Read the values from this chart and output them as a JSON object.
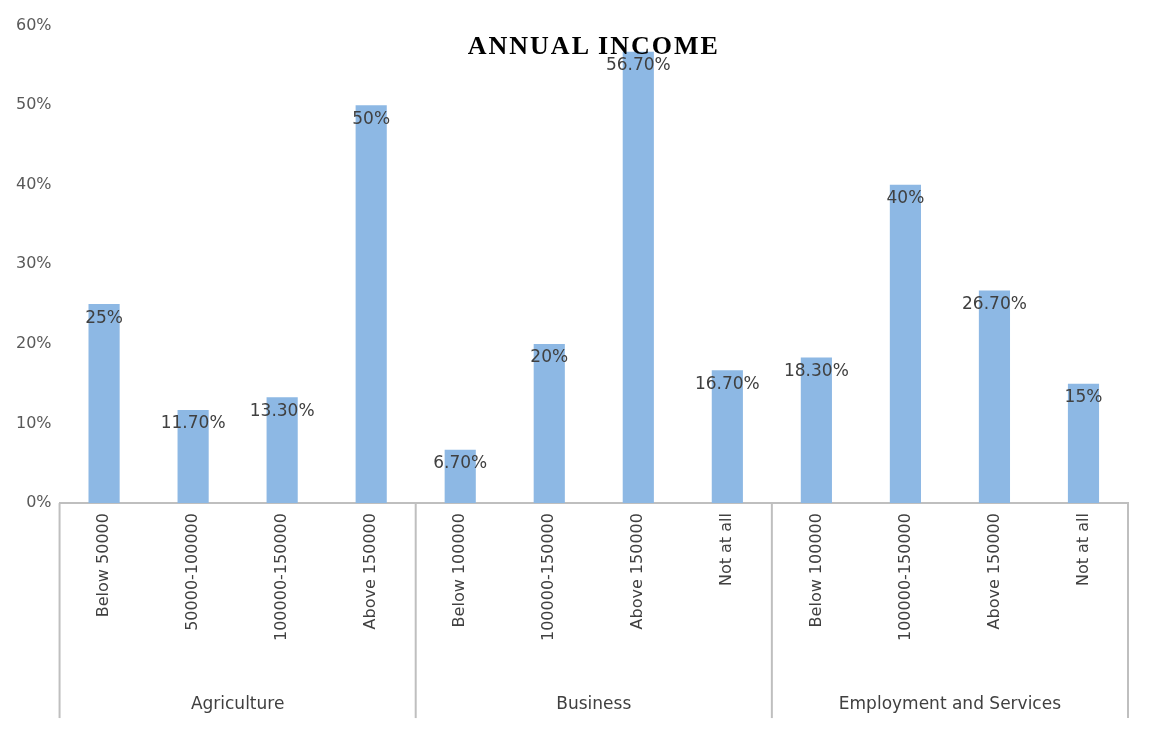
{
  "chart_data": {
    "type": "bar",
    "title": "ANNUAL INCOME",
    "categories": [
      "Below 50000",
      "50000-100000",
      "100000-150000",
      "Above 150000",
      "Below 100000",
      "100000-150000",
      "Above 150000",
      "Not at all",
      "Below 100000",
      "100000-150000",
      "Above 150000",
      "Not at all"
    ],
    "values": [
      25,
      11.7,
      13.3,
      50,
      6.7,
      20,
      56.7,
      16.7,
      18.3,
      40,
      26.7,
      15
    ],
    "value_labels": [
      "25%",
      "11.70%",
      "13.30%",
      "50%",
      "6.70%",
      "20%",
      "56.70%",
      "16.70%",
      "18.30%",
      "40%",
      "26.70%",
      "15%"
    ],
    "color": "#8db8e4",
    "ylim": [
      0,
      60
    ],
    "yticks": [
      {
        "value": 0,
        "label": "0%"
      },
      {
        "value": 10,
        "label": "10%"
      },
      {
        "value": 20,
        "label": "20%"
      },
      {
        "value": 30,
        "label": "30%"
      },
      {
        "value": 40,
        "label": "40%"
      },
      {
        "value": 50,
        "label": "50%"
      },
      {
        "value": 60,
        "label": "60%"
      }
    ],
    "annotations": [
      "Agriculture",
      "Business",
      "Employment and Services"
    ],
    "grid": false,
    "legend": false
  }
}
